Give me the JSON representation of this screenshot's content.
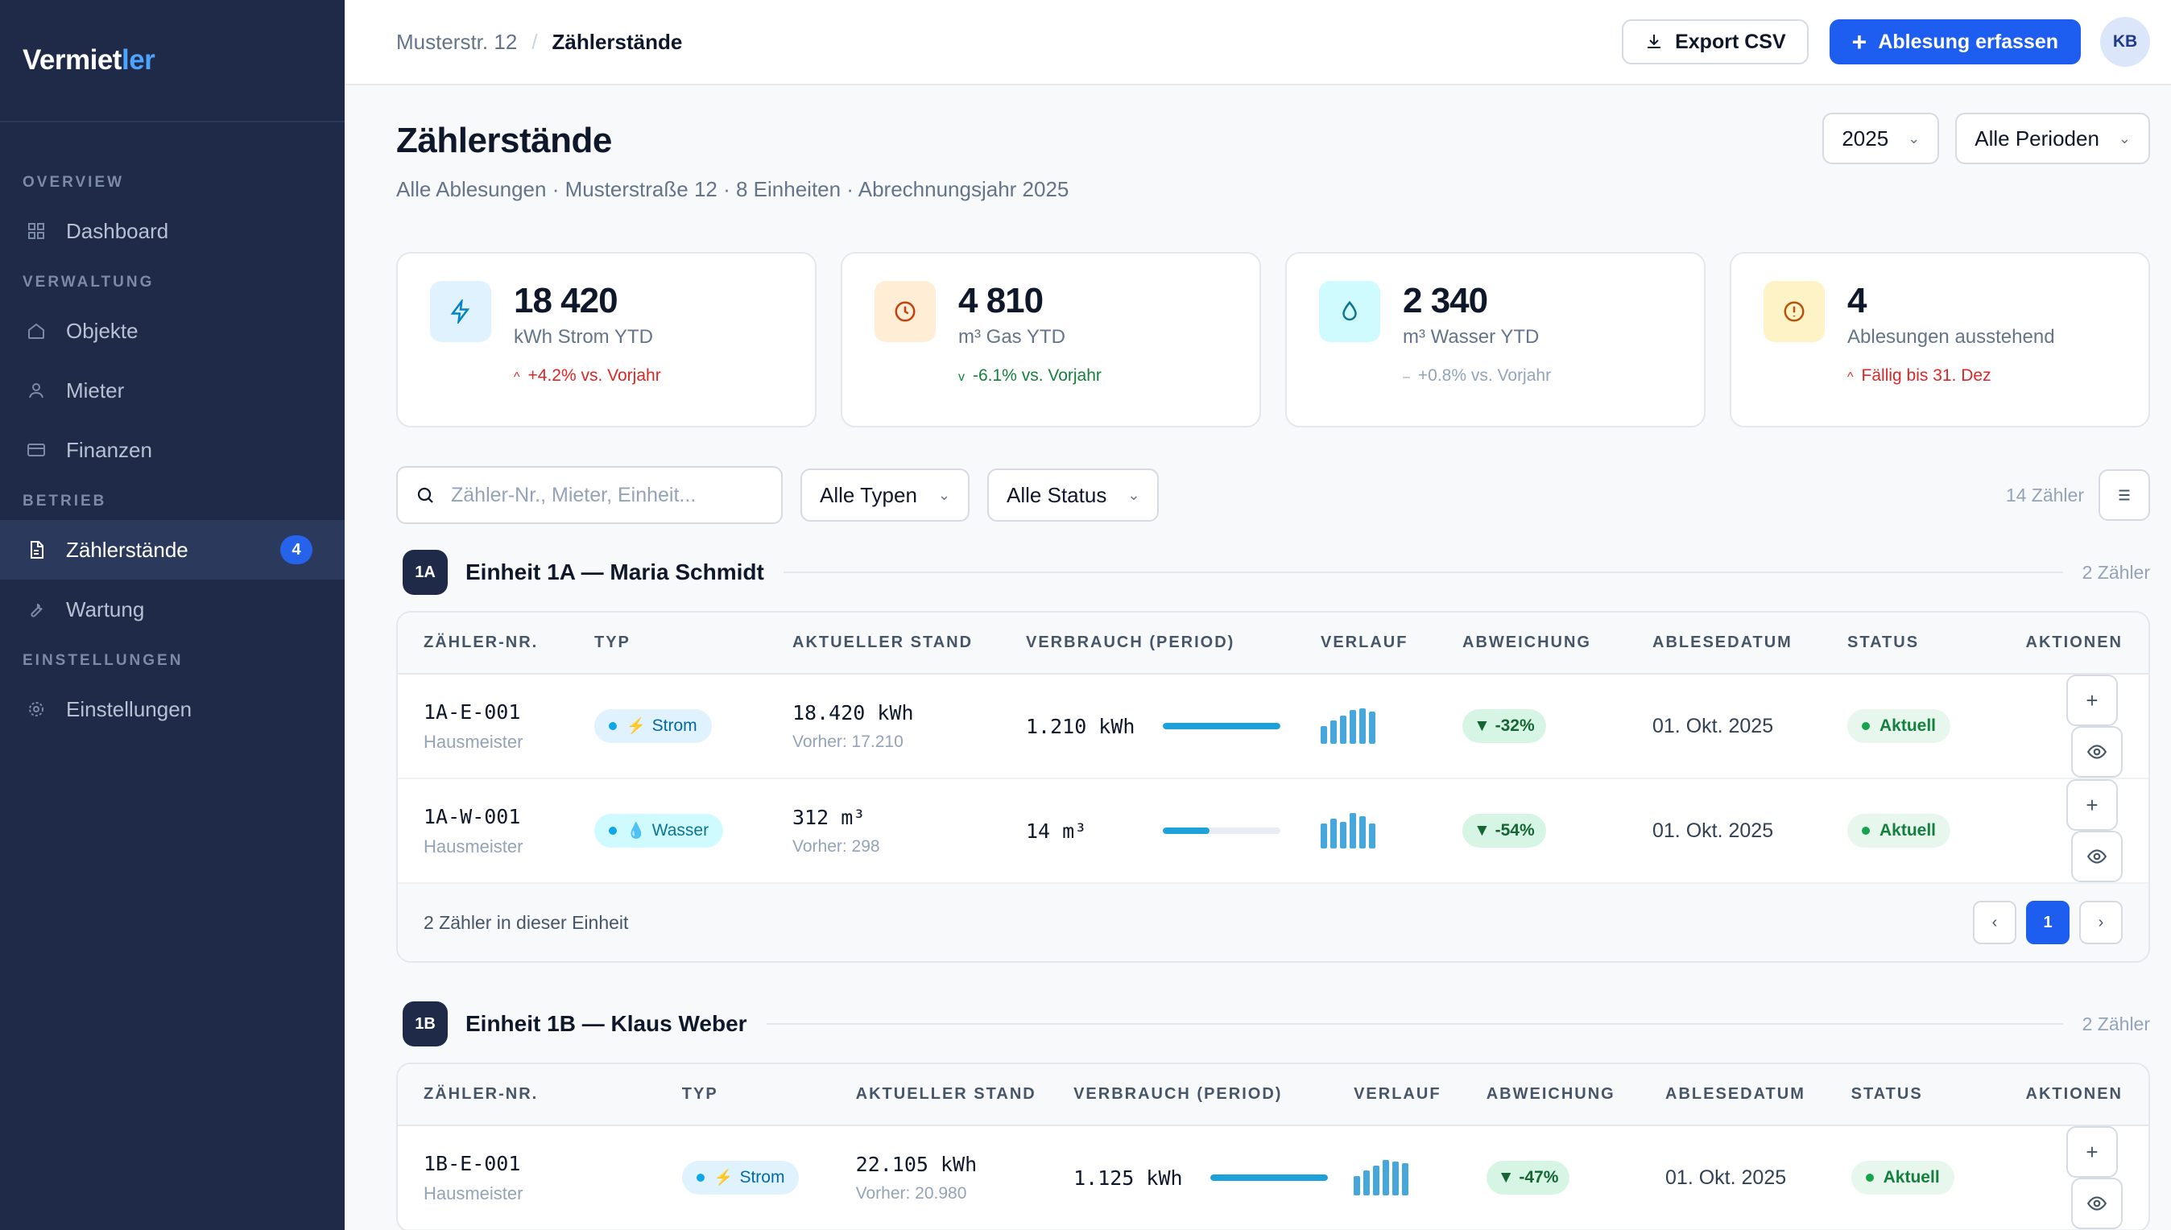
{
  "app": {
    "logo_main": "Vermiet",
    "logo_accent": "ler"
  },
  "sidebar": {
    "sections": [
      {
        "label": "OVERVIEW"
      },
      {
        "label": "VERWALTUNG"
      },
      {
        "label": "BETRIEB"
      },
      {
        "label": "EINSTELLUNGEN"
      }
    ],
    "items": [
      {
        "label": "Dashboard",
        "icon": "grid-icon"
      },
      {
        "label": "Objekte",
        "icon": "home-icon"
      },
      {
        "label": "Mieter",
        "icon": "user-icon"
      },
      {
        "label": "Finanzen",
        "icon": "card-icon"
      },
      {
        "label": "Zählerstände",
        "icon": "document-icon",
        "badge": "4",
        "active": true
      },
      {
        "label": "Wartung",
        "icon": "wrench-icon"
      },
      {
        "label": "Einstellungen",
        "icon": "gear-icon"
      }
    ]
  },
  "topbar": {
    "breadcrumb": [
      "Musterstr. 12",
      "Zählerstände"
    ],
    "separator": "/",
    "export_label": "Export CSV",
    "primary_label": "Ablesung erfassen",
    "avatar": "KB"
  },
  "page": {
    "title": "Zählerstände",
    "subtitle": "Alle Ablesungen · Musterstraße 12 · 8 Einheiten · Abrechnungsjahr 2025",
    "year_select": "2025",
    "period_select": "Alle Perioden"
  },
  "kpis": [
    {
      "value": "18 420",
      "label": "kWh Strom YTD",
      "trend": "+4.2% vs. Vorjahr",
      "trend_arrow": "^",
      "trend_color": "#dc2626",
      "icon": "bolt-icon",
      "bg": "#e0f2fe",
      "fg": "#0284c7"
    },
    {
      "value": "4 810",
      "label": "m³ Gas YTD",
      "trend": "-6.1% vs. Vorjahr",
      "trend_arrow": "v",
      "trend_color": "#15803d",
      "icon": "clock-icon",
      "bg": "#ffedd5",
      "fg": "#c2410c"
    },
    {
      "value": "2 340",
      "label": "m³ Wasser YTD",
      "trend": "+0.8% vs. Vorjahr",
      "trend_arrow": "–",
      "trend_color": "#94a3b8",
      "icon": "drop-icon",
      "bg": "#cffafe",
      "fg": "#0e7490"
    },
    {
      "value": "4",
      "label": "Ablesungen ausstehend",
      "trend": "Fällig bis 31. Dez",
      "trend_arrow": "^",
      "trend_color": "#dc2626",
      "icon": "alert-icon",
      "bg": "#fef3c7",
      "fg": "#b45309"
    }
  ],
  "filters": {
    "search_placeholder": "Zähler-Nr., Mieter, Einheit...",
    "type_select": "Alle Typen",
    "status_select": "Alle Status",
    "count": "14 Zähler"
  },
  "columns": [
    "ZÄHLER-NR.",
    "TYP",
    "AKTUELLER STAND",
    "VERBRAUCH (PERIOD)",
    "VERLAUF",
    "ABWEICHUNG",
    "ABLESEDATUM",
    "STATUS",
    "AKTIONEN"
  ],
  "groups": [
    {
      "badge": "1A",
      "title": "Einheit 1A — Maria Schmidt",
      "count": "2 Zähler",
      "footer": "2 Zähler in dieser Einheit",
      "page": "1",
      "rows": [
        {
          "id": "1A-E-001",
          "reader": "Hausmeister",
          "type": "Strom",
          "type_glyph": "⚡",
          "type_bg": "#e0f2fe",
          "type_fg": "#0369a1",
          "type_dot": "#0ea5e9",
          "glyph_color": "#f59e0b",
          "stand": "18.420 kWh",
          "prev": "Vorher: 17.210",
          "usage": "1.210 kWh",
          "usage_frac": 1.0,
          "spark": [
            0.5,
            0.65,
            0.8,
            0.95,
            1.0,
            0.9
          ],
          "dev": "▼ -32%",
          "date": "01. Okt. 2025",
          "status": "Aktuell"
        },
        {
          "id": "1A-W-001",
          "reader": "Hausmeister",
          "type": "Wasser",
          "type_glyph": "💧",
          "type_bg": "#cffafe",
          "type_fg": "#0e7490",
          "type_dot": "#0ea5e9",
          "glyph_color": "#0ea5e9",
          "stand": "312 m³",
          "prev": "Vorher: 298",
          "usage": "14 m³",
          "usage_frac": 0.4,
          "spark": [
            0.7,
            0.85,
            0.75,
            1.0,
            0.9,
            0.7
          ],
          "dev": "▼ -54%",
          "date": "01. Okt. 2025",
          "status": "Aktuell"
        }
      ]
    },
    {
      "badge": "1B",
      "title": "Einheit 1B — Klaus Weber",
      "count": "2 Zähler",
      "rows": [
        {
          "id": "1B-E-001",
          "reader": "Hausmeister",
          "type": "Strom",
          "type_glyph": "⚡",
          "type_bg": "#e0f2fe",
          "type_fg": "#0369a1",
          "type_dot": "#0ea5e9",
          "glyph_color": "#f59e0b",
          "stand": "22.105 kWh",
          "prev": "Vorher: 20.980",
          "usage": "1.125 kWh",
          "usage_frac": 1.0,
          "spark": [
            0.55,
            0.7,
            0.85,
            1.0,
            0.95,
            0.9
          ],
          "dev": "▼ -47%",
          "date": "01. Okt. 2025",
          "status": "Aktuell"
        }
      ]
    }
  ]
}
